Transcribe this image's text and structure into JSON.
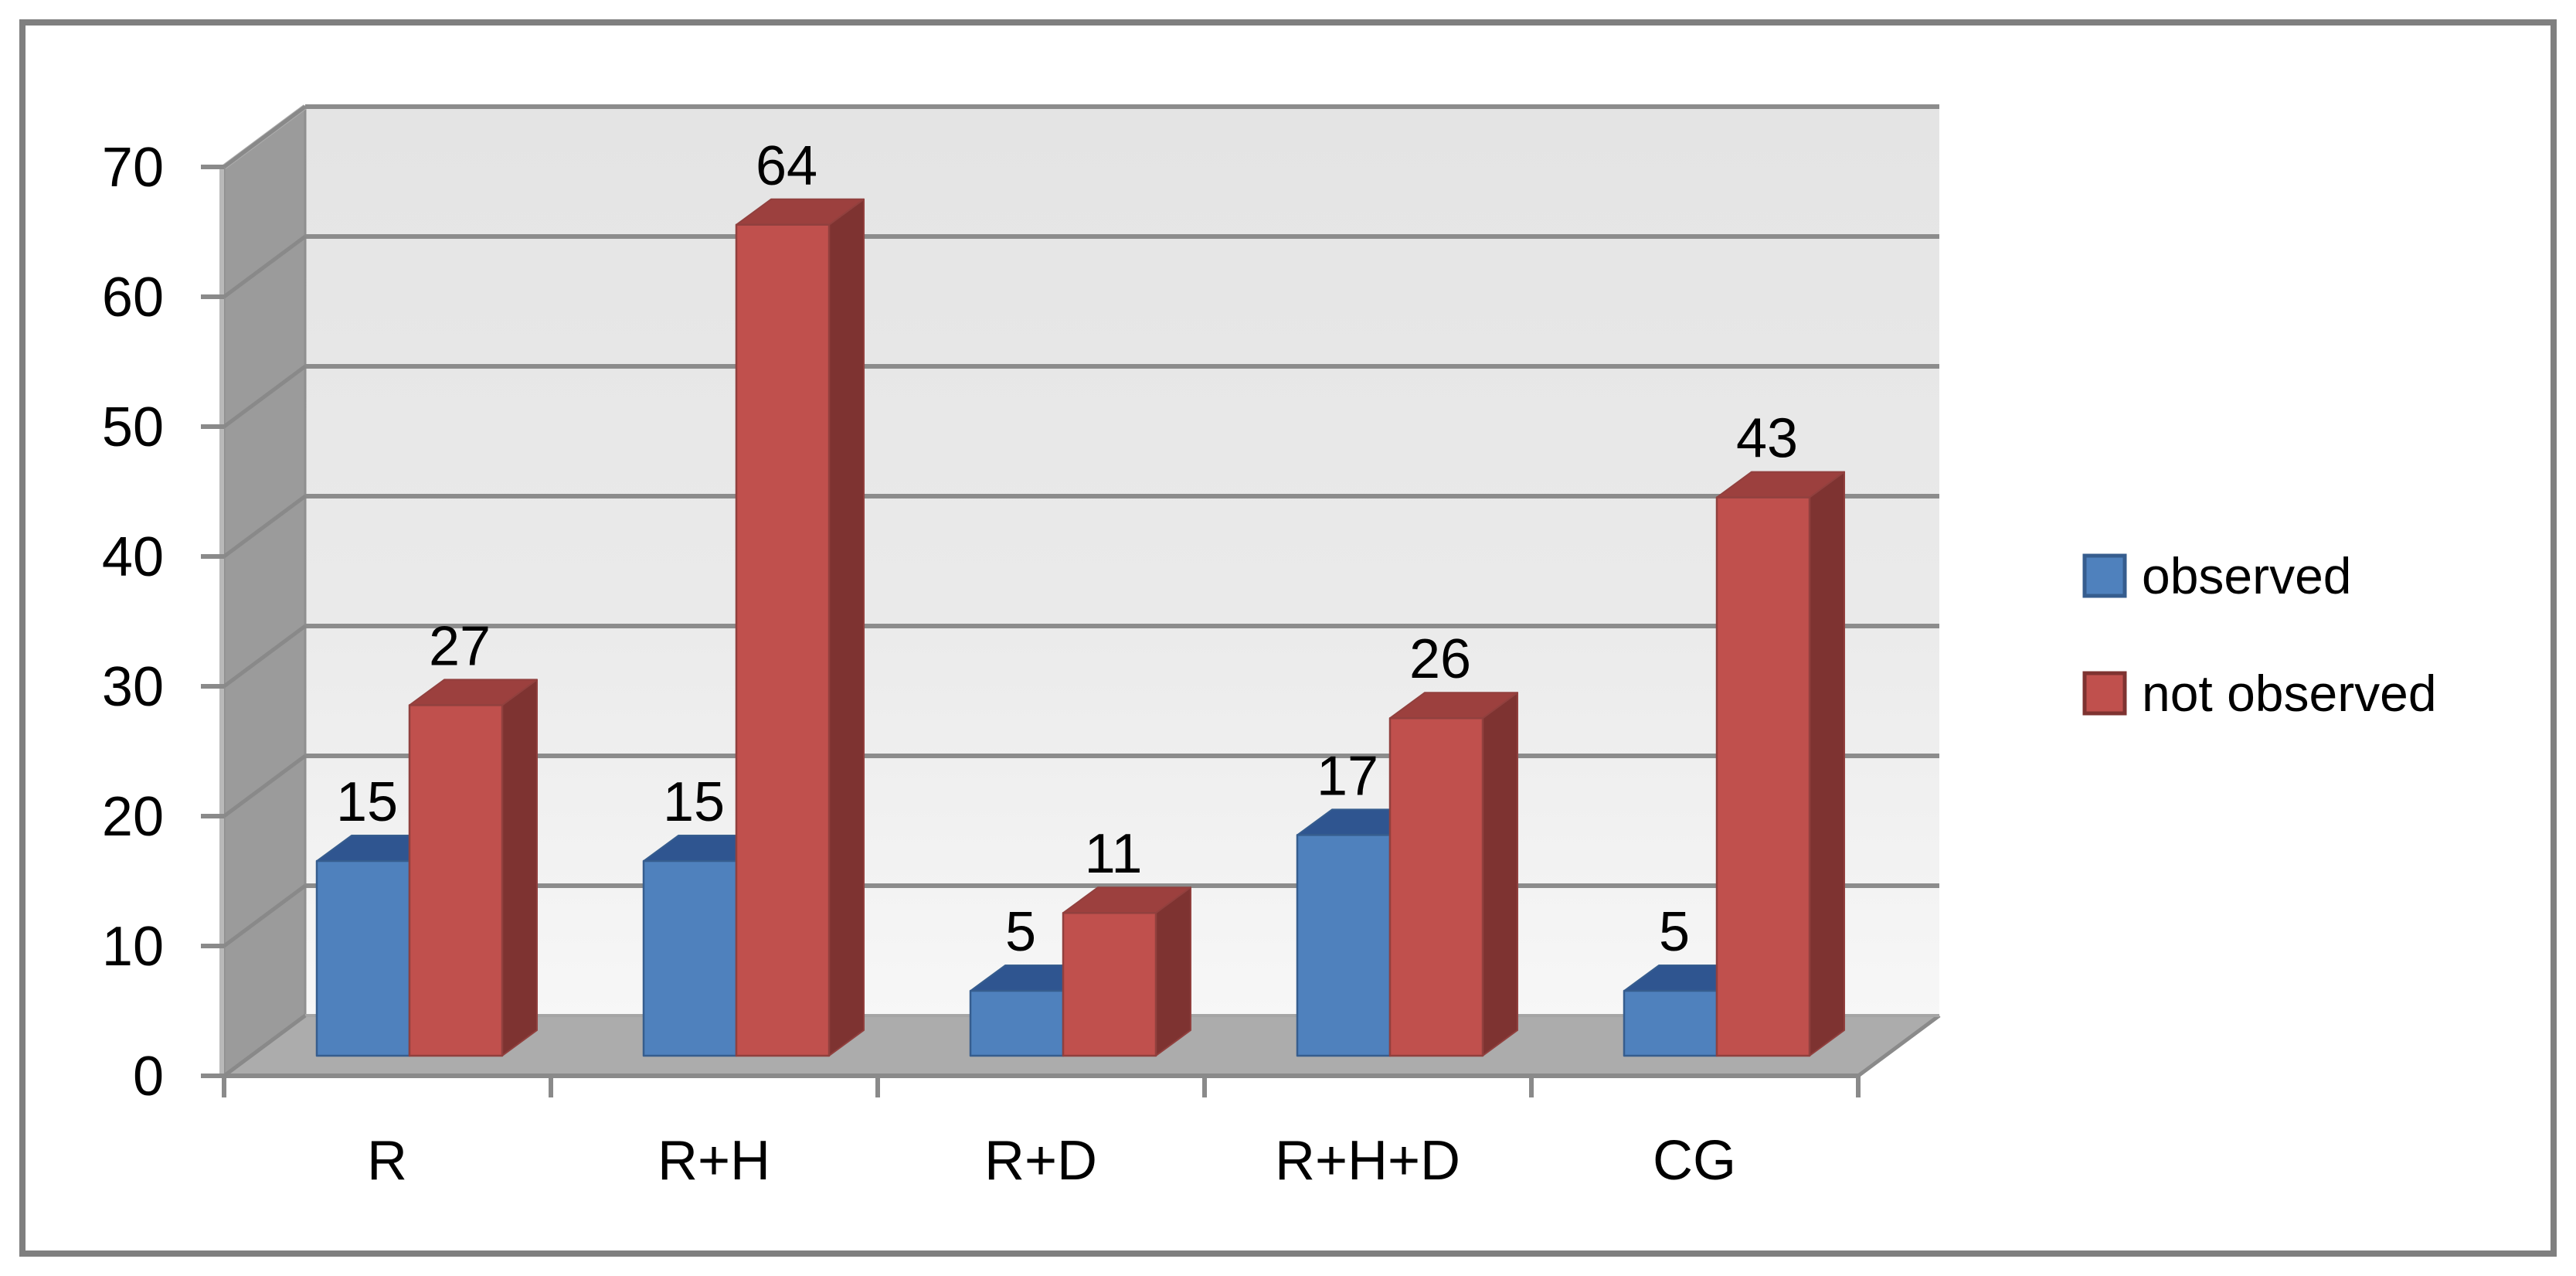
{
  "chart_data": {
    "type": "bar",
    "subtype": "3d-clustered-column",
    "title": "",
    "categories": [
      "R",
      "R+H",
      "R+D",
      "R+H+D",
      "CG"
    ],
    "series": [
      {
        "name": "observed",
        "color": "#4F81BD",
        "values": [
          15,
          15,
          5,
          17,
          5
        ]
      },
      {
        "name": "not observed",
        "color": "#C0504D",
        "values": [
          27,
          64,
          11,
          26,
          43
        ]
      }
    ],
    "y_axis": {
      "min": 0,
      "max": 70,
      "step": 10,
      "tick_labels": [
        "0",
        "10",
        "20",
        "30",
        "40",
        "50",
        "60",
        "70"
      ]
    },
    "xlabel": "",
    "ylabel": "",
    "grid": true,
    "data_labels_shown": true,
    "legend_position": "right"
  },
  "colors": {
    "observed_front": "#4F81BD",
    "observed_top": "#2F5590",
    "observed_side": "#34557D",
    "observed_edge": "#365D8E",
    "not_observed_front": "#C0504D",
    "not_observed_top": "#9C403E",
    "not_observed_side": "#7E3331",
    "not_observed_edge": "#91403E",
    "back_wall_top": "#E4E4E4",
    "back_wall_mid": "#EAEAEA",
    "back_wall_bottom": "#F7F7F7",
    "side_wall": "#9B9B9B",
    "floor": "#ACACAC",
    "gridline": "#8C8C8C",
    "axis": "#8A8A8A",
    "wall_edge_light": "#AEAEAE",
    "frame_border": "#7F7F7F",
    "label_text": "#000000"
  }
}
